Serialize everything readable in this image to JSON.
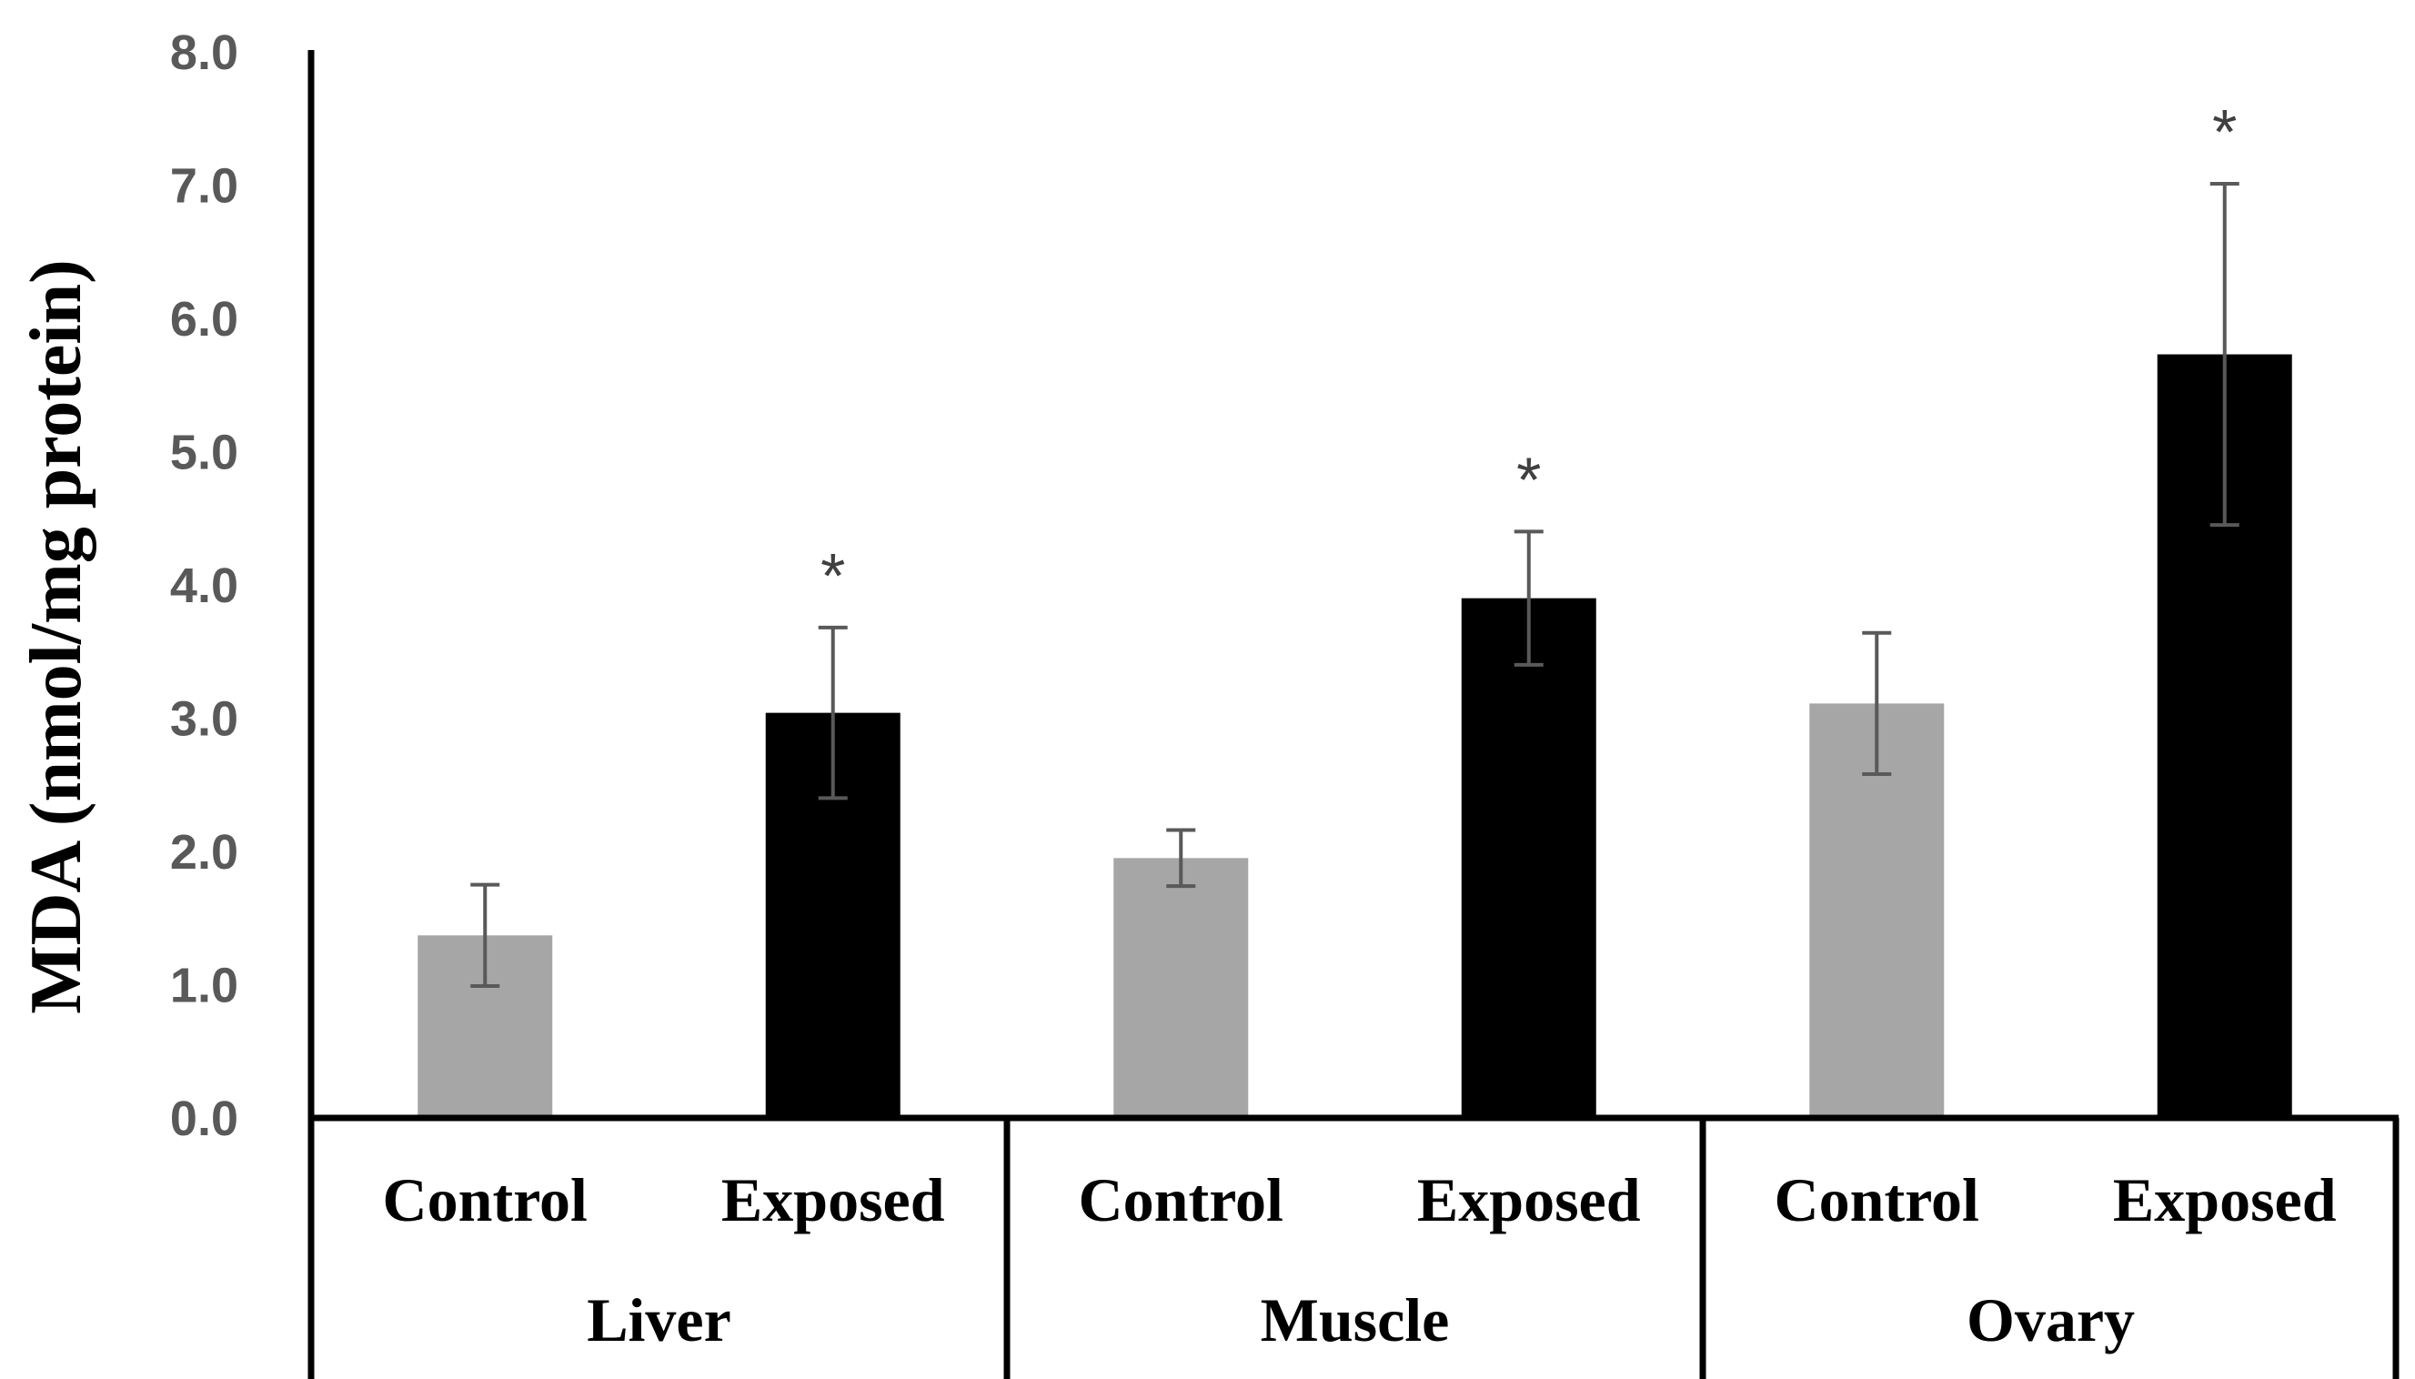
{
  "chart_data": {
    "type": "bar",
    "title": "",
    "ylabel": "MDA (nmol/mg protein)",
    "ylim": [
      0,
      8
    ],
    "yticks": [
      "0.0",
      "1.0",
      "2.0",
      "3.0",
      "4.0",
      "5.0",
      "6.0",
      "7.0",
      "8.0"
    ],
    "groups": [
      "Liver",
      "Muscle",
      "Ovary"
    ],
    "categories": [
      "Control",
      "Exposed"
    ],
    "colors": {
      "Control": "#a6a6a6",
      "Exposed": "#000000"
    },
    "bars": [
      {
        "group": "Liver",
        "category": "Control",
        "value": 1.37,
        "error": 0.38,
        "mark": ""
      },
      {
        "group": "Liver",
        "category": "Exposed",
        "value": 3.04,
        "error": 0.64,
        "mark": "*"
      },
      {
        "group": "Muscle",
        "category": "Control",
        "value": 1.95,
        "error": 0.21,
        "mark": ""
      },
      {
        "group": "Muscle",
        "category": "Exposed",
        "value": 3.9,
        "error": 0.5,
        "mark": "*"
      },
      {
        "group": "Ovary",
        "category": "Control",
        "value": 3.11,
        "error": 0.53,
        "mark": ""
      },
      {
        "group": "Ovary",
        "category": "Exposed",
        "value": 5.73,
        "error": 1.28,
        "mark": "*"
      }
    ]
  }
}
